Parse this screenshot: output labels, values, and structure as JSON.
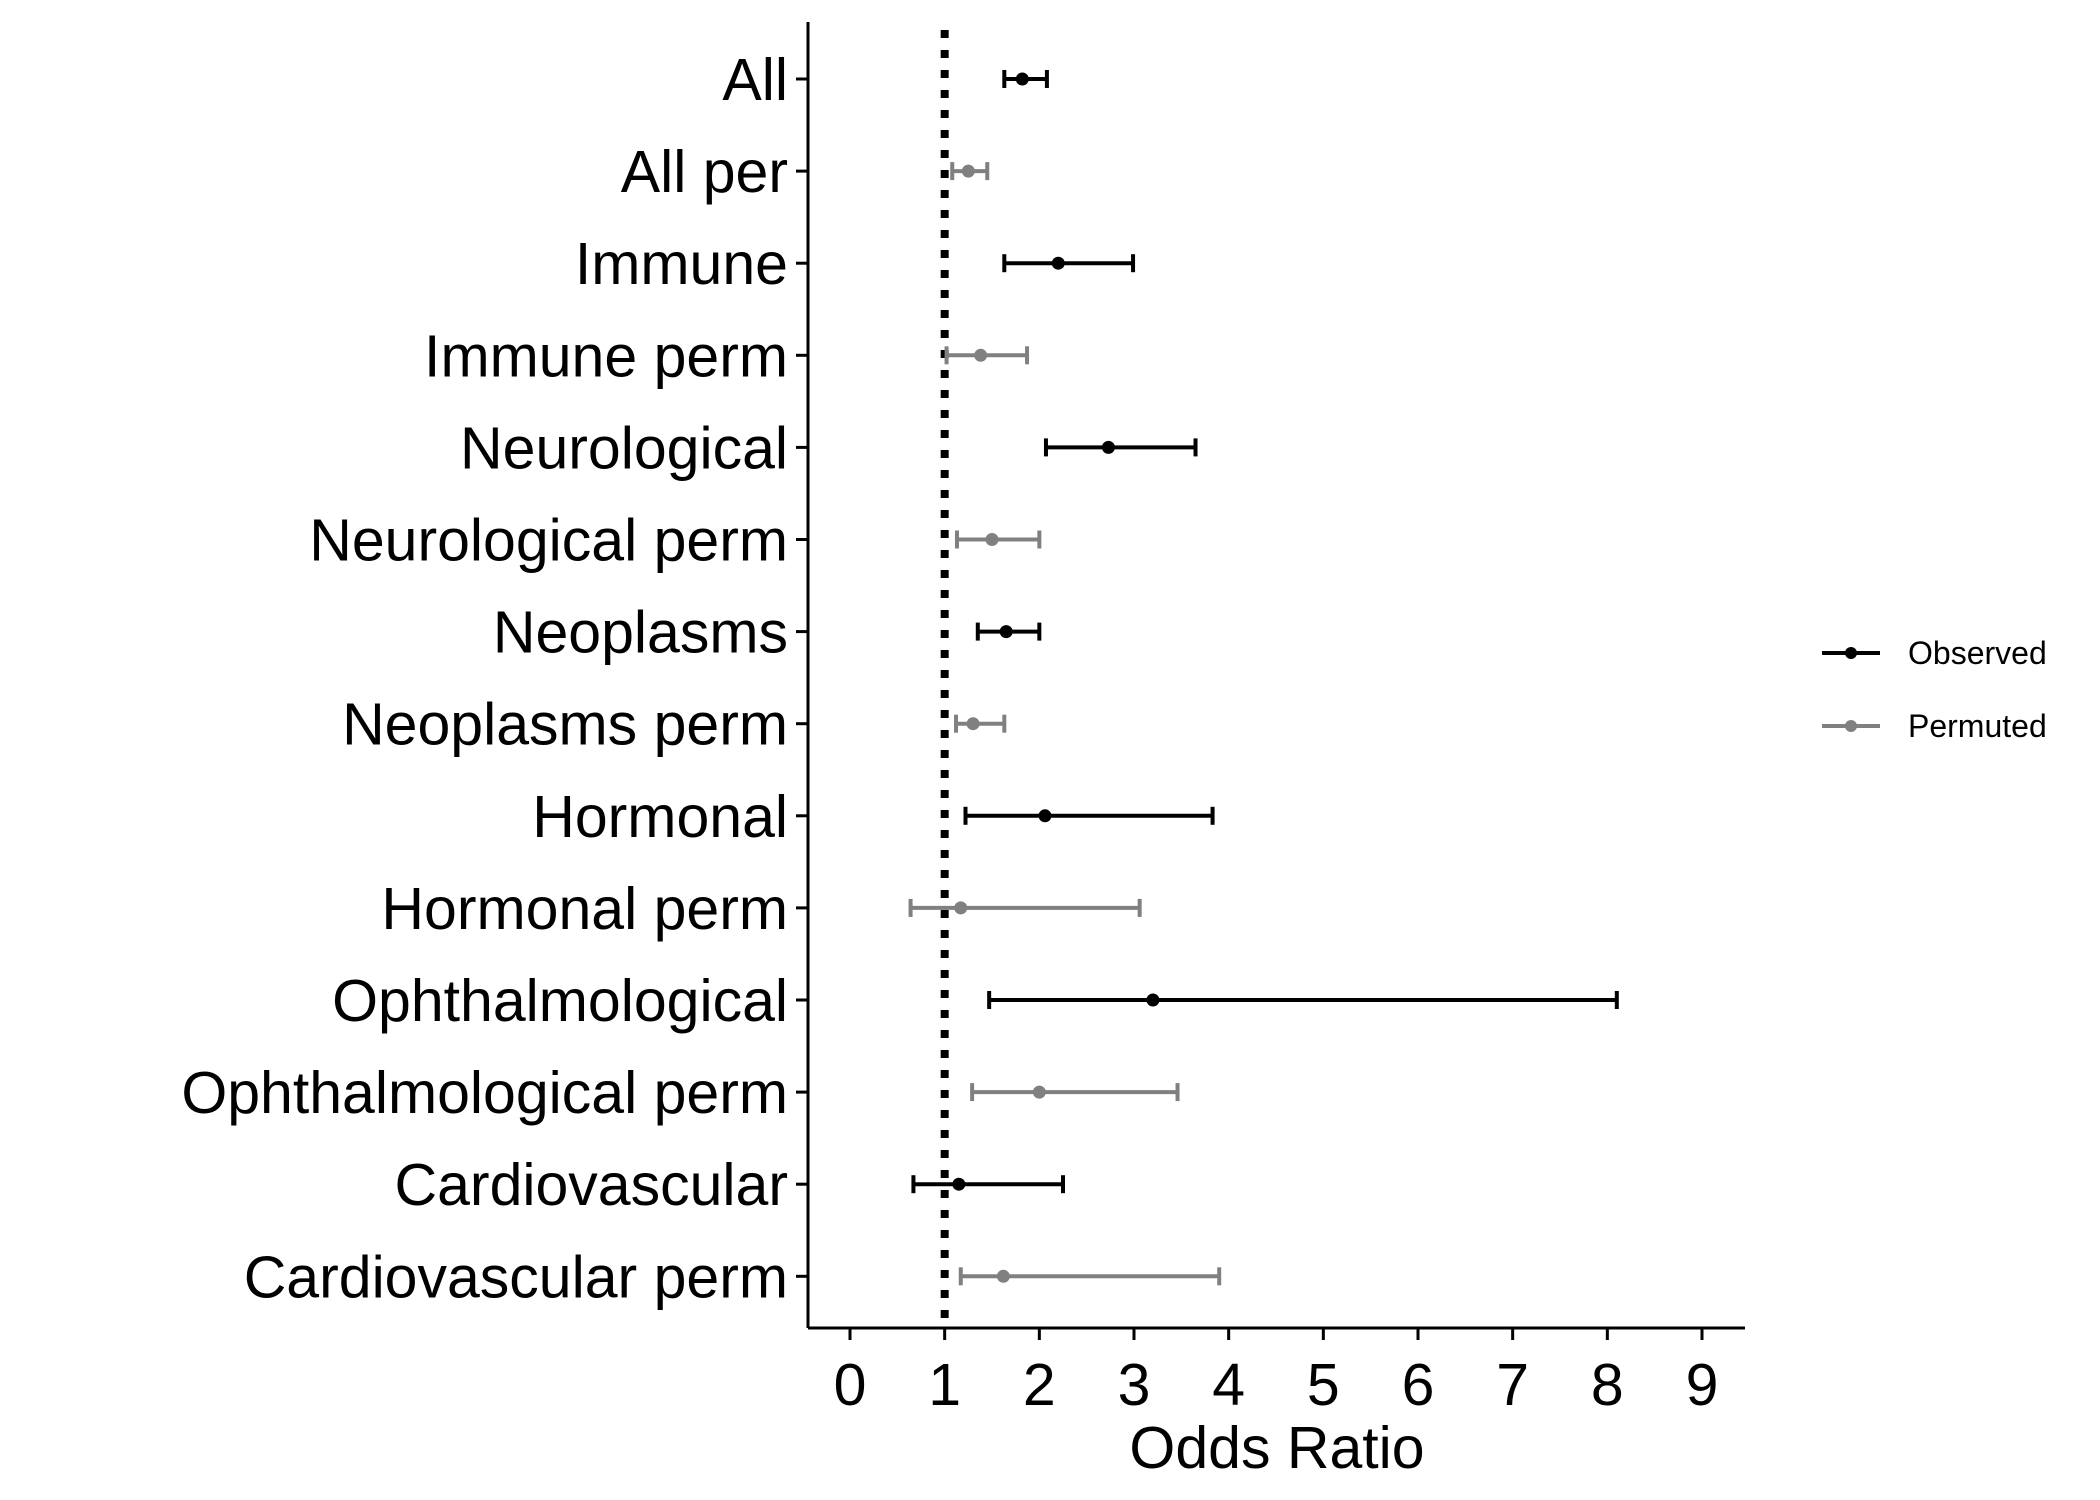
{
  "chart_data": {
    "type": "forest",
    "xlabel": "Odds Ratio",
    "ylabel": "",
    "xlim": [
      -0.45,
      9.4
    ],
    "xticks": [
      0,
      1,
      2,
      3,
      4,
      5,
      6,
      7,
      8,
      9
    ],
    "reference_line": 1,
    "grid": false,
    "legend_position": "right",
    "series": [
      {
        "name": "Observed",
        "color": "#000000"
      },
      {
        "name": "Permuted",
        "color": "#808080"
      }
    ],
    "rows": [
      {
        "label": "All",
        "series": "Observed",
        "estimate": 1.82,
        "lower": 1.63,
        "upper": 2.08
      },
      {
        "label": "All per",
        "series": "Permuted",
        "estimate": 1.25,
        "lower": 1.08,
        "upper": 1.45
      },
      {
        "label": "Immune",
        "series": "Observed",
        "estimate": 2.2,
        "lower": 1.63,
        "upper": 2.99
      },
      {
        "label": "Immune perm",
        "series": "Permuted",
        "estimate": 1.38,
        "lower": 1.02,
        "upper": 1.87
      },
      {
        "label": "Neurological",
        "series": "Observed",
        "estimate": 2.73,
        "lower": 2.07,
        "upper": 3.65
      },
      {
        "label": "Neurological perm",
        "series": "Permuted",
        "estimate": 1.5,
        "lower": 1.13,
        "upper": 2.0
      },
      {
        "label": "Neoplasms",
        "series": "Observed",
        "estimate": 1.65,
        "lower": 1.35,
        "upper": 2.0
      },
      {
        "label": "Neoplasms perm",
        "series": "Permuted",
        "estimate": 1.3,
        "lower": 1.12,
        "upper": 1.63
      },
      {
        "label": "Hormonal",
        "series": "Observed",
        "estimate": 2.06,
        "lower": 1.22,
        "upper": 3.83
      },
      {
        "label": "Hormonal perm",
        "series": "Permuted",
        "estimate": 1.17,
        "lower": 0.64,
        "upper": 3.06
      },
      {
        "label": "Ophthalmological",
        "series": "Observed",
        "estimate": 3.2,
        "lower": 1.47,
        "upper": 8.1
      },
      {
        "label": "Ophthalmological perm",
        "series": "Permuted",
        "estimate": 2.0,
        "lower": 1.29,
        "upper": 3.46
      },
      {
        "label": "Cardiovascular",
        "series": "Observed",
        "estimate": 1.15,
        "lower": 0.67,
        "upper": 2.25
      },
      {
        "label": "Cardiovascular perm",
        "series": "Permuted",
        "estimate": 1.62,
        "lower": 1.17,
        "upper": 3.9
      }
    ]
  }
}
